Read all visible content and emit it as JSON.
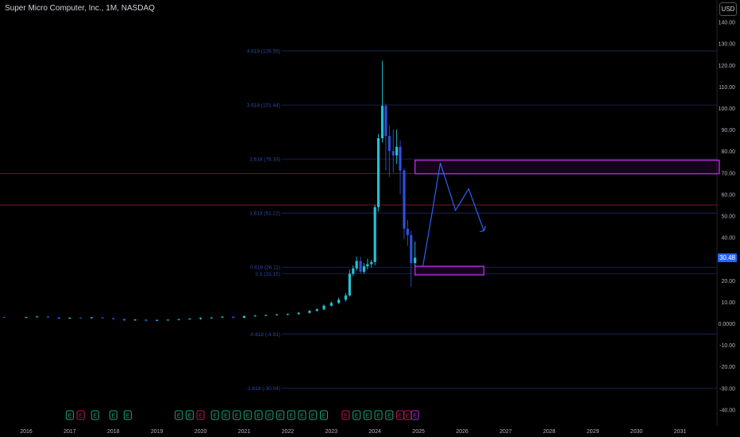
{
  "header": {
    "symbol": "Super Micro Computer, Inc., 1M, NASDAQ"
  },
  "currency_button": "USD",
  "last_price": "30.48",
  "earnings_marker_label": "E",
  "chart_data": {
    "type": "candlestick",
    "title": "Super Micro Computer, Inc., 1M, NASDAQ",
    "currency": "USD",
    "last_price": 30.48,
    "ylim": [
      -40,
      140
    ],
    "y_ticks": [
      140,
      130,
      120,
      110,
      100,
      90,
      80,
      70,
      60,
      50,
      40,
      30,
      20,
      10,
      0,
      -10,
      -20,
      -30,
      -40
    ],
    "y_tick_labels": [
      "140.00",
      "130.00",
      "120.00",
      "110.00",
      "100.00",
      "90.00",
      "80.00",
      "70.00",
      "60.00",
      "50.00",
      "40.00",
      "30.00",
      "20.00",
      "10.00",
      "0.0000",
      "-10.00",
      "-20.00",
      "-30.00",
      "-40.00"
    ],
    "x_ticks": [
      "2016",
      "2017",
      "2018",
      "2019",
      "2020",
      "2021",
      "2022",
      "2023",
      "2024",
      "2025",
      "2026",
      "2027",
      "2028",
      "2029",
      "2030",
      "2031"
    ],
    "x_tick_years": [
      2016,
      2017,
      2018,
      2019,
      2020,
      2021,
      2022,
      2023,
      2024,
      2025,
      2026,
      2027,
      2028,
      2029,
      2030,
      2031
    ],
    "fib_levels": [
      {
        "label": "4.618 (126.55)",
        "value": 126.55
      },
      {
        "label": "3.618 (101.44)",
        "value": 101.44
      },
      {
        "label": "2.618 (76.33)",
        "value": 76.33
      },
      {
        "label": "1.618 (51.22)",
        "value": 51.22
      },
      {
        "label": "0.618 (26.11)",
        "value": 26.11
      },
      {
        "label": "0.5 (23.15)",
        "value": 23.15
      },
      {
        "label": "-0.618 (-4.91)",
        "value": -4.91
      },
      {
        "label": "-1.618 (-30.04)",
        "value": -30.04
      }
    ],
    "horizontal_lines": [
      69.5,
      55.0
    ],
    "zones": [
      {
        "t0": 2024.92,
        "t1": 2031.9,
        "low": 69.5,
        "high": 75.8,
        "color": "#b32bd6"
      },
      {
        "t0": 2024.92,
        "t1": 2026.5,
        "low": 22.5,
        "high": 26.5,
        "color": "#b32bd6"
      }
    ],
    "projection": [
      [
        2025.1,
        26.5
      ],
      [
        2025.3,
        50.0
      ],
      [
        2025.5,
        74.5
      ],
      [
        2025.85,
        52.5
      ],
      [
        2026.15,
        62.5
      ],
      [
        2026.5,
        43.0
      ]
    ],
    "earnings_markers": [
      2017.0,
      2017.25,
      2017.58,
      2018.0,
      2018.33,
      2019.5,
      2019.75,
      2020.0,
      2020.33,
      2020.58,
      2020.83,
      2021.08,
      2021.33,
      2021.58,
      2021.83,
      2022.08,
      2022.33,
      2022.58,
      2022.83,
      2023.33,
      2023.58,
      2023.83,
      2024.08,
      2024.33,
      2024.58,
      2024.75,
      2024.92
    ],
    "earnings_red": [
      2017.25,
      2020.0,
      2023.33,
      2024.58,
      2024.75
    ],
    "earnings_purple": [
      2024.92
    ],
    "candles": [
      [
        2015.5,
        3.0,
        2.8,
        3.1,
        2.6
      ],
      [
        2016.0,
        2.8,
        2.9,
        3.1,
        2.5
      ],
      [
        2016.25,
        2.9,
        3.2,
        3.4,
        2.7
      ],
      [
        2016.5,
        3.2,
        2.8,
        3.3,
        2.6
      ],
      [
        2016.75,
        2.8,
        2.2,
        2.9,
        2.0
      ],
      [
        2017.0,
        2.2,
        2.6,
        2.8,
        2.1
      ],
      [
        2017.25,
        2.6,
        2.4,
        2.7,
        2.2
      ],
      [
        2017.5,
        2.4,
        2.8,
        3.0,
        2.3
      ],
      [
        2017.75,
        2.8,
        2.5,
        2.9,
        2.3
      ],
      [
        2018.0,
        2.5,
        2.1,
        2.6,
        1.6
      ],
      [
        2018.25,
        2.1,
        1.4,
        2.2,
        1.1
      ],
      [
        2018.5,
        1.4,
        1.8,
        2.0,
        1.2
      ],
      [
        2018.75,
        1.8,
        1.2,
        1.9,
        0.9
      ],
      [
        2019.0,
        1.2,
        1.6,
        1.8,
        1.1
      ],
      [
        2019.25,
        1.6,
        1.7,
        1.9,
        1.4
      ],
      [
        2019.5,
        1.7,
        1.9,
        2.1,
        1.5
      ],
      [
        2019.75,
        1.9,
        2.2,
        2.4,
        1.8
      ],
      [
        2020.0,
        2.2,
        2.6,
        2.8,
        1.6
      ],
      [
        2020.25,
        2.6,
        2.7,
        3.0,
        2.4
      ],
      [
        2020.5,
        2.7,
        3.1,
        3.3,
        2.6
      ],
      [
        2020.75,
        3.1,
        2.6,
        3.2,
        2.4
      ],
      [
        2021.0,
        2.6,
        3.4,
        3.6,
        2.5
      ],
      [
        2021.25,
        3.4,
        3.6,
        3.9,
        3.2
      ],
      [
        2021.5,
        3.6,
        3.9,
        4.1,
        3.4
      ],
      [
        2021.75,
        3.9,
        4.1,
        4.4,
        3.7
      ],
      [
        2022.0,
        4.1,
        4.3,
        4.6,
        3.8
      ],
      [
        2022.25,
        4.3,
        4.9,
        5.3,
        4.1
      ],
      [
        2022.5,
        4.9,
        5.8,
        6.2,
        4.6
      ],
      [
        2022.67,
        5.8,
        6.5,
        7.0,
        5.5
      ],
      [
        2022.83,
        6.5,
        8.2,
        8.8,
        6.2
      ],
      [
        2023.0,
        8.2,
        9.5,
        10.2,
        7.8
      ],
      [
        2023.17,
        9.5,
        11.0,
        12.0,
        9.0
      ],
      [
        2023.33,
        11.0,
        13.0,
        14.0,
        10.2
      ],
      [
        2023.42,
        13.0,
        23.0,
        25.0,
        12.5
      ],
      [
        2023.5,
        23.0,
        25.5,
        27.0,
        22.0
      ],
      [
        2023.58,
        25.5,
        29.0,
        31.0,
        24.5
      ],
      [
        2023.67,
        29.0,
        24.0,
        31.0,
        23.0
      ],
      [
        2023.75,
        24.0,
        26.5,
        28.0,
        23.0
      ],
      [
        2023.83,
        26.5,
        27.5,
        30.0,
        25.0
      ],
      [
        2023.92,
        27.5,
        28.5,
        29.5,
        26.0
      ],
      [
        2024.0,
        28.5,
        54.0,
        55.0,
        27.0
      ],
      [
        2024.08,
        54.0,
        86.0,
        88.0,
        52.0
      ],
      [
        2024.17,
        86.0,
        101.0,
        122.0,
        84.0
      ],
      [
        2024.25,
        101.0,
        87.0,
        102.0,
        71.0
      ],
      [
        2024.33,
        87.0,
        80.0,
        92.0,
        68.0
      ],
      [
        2024.42,
        80.0,
        78.0,
        90.0,
        70.0
      ],
      [
        2024.5,
        78.0,
        82.0,
        90.0,
        74.0
      ],
      [
        2024.58,
        82.0,
        71.0,
        85.0,
        60.0
      ],
      [
        2024.67,
        71.0,
        44.0,
        72.0,
        39.0
      ],
      [
        2024.75,
        44.0,
        41.0,
        48.0,
        36.0
      ],
      [
        2024.83,
        41.0,
        28.0,
        43.0,
        17.0
      ],
      [
        2024.92,
        28.0,
        30.48,
        38.0,
        26.5
      ]
    ]
  }
}
